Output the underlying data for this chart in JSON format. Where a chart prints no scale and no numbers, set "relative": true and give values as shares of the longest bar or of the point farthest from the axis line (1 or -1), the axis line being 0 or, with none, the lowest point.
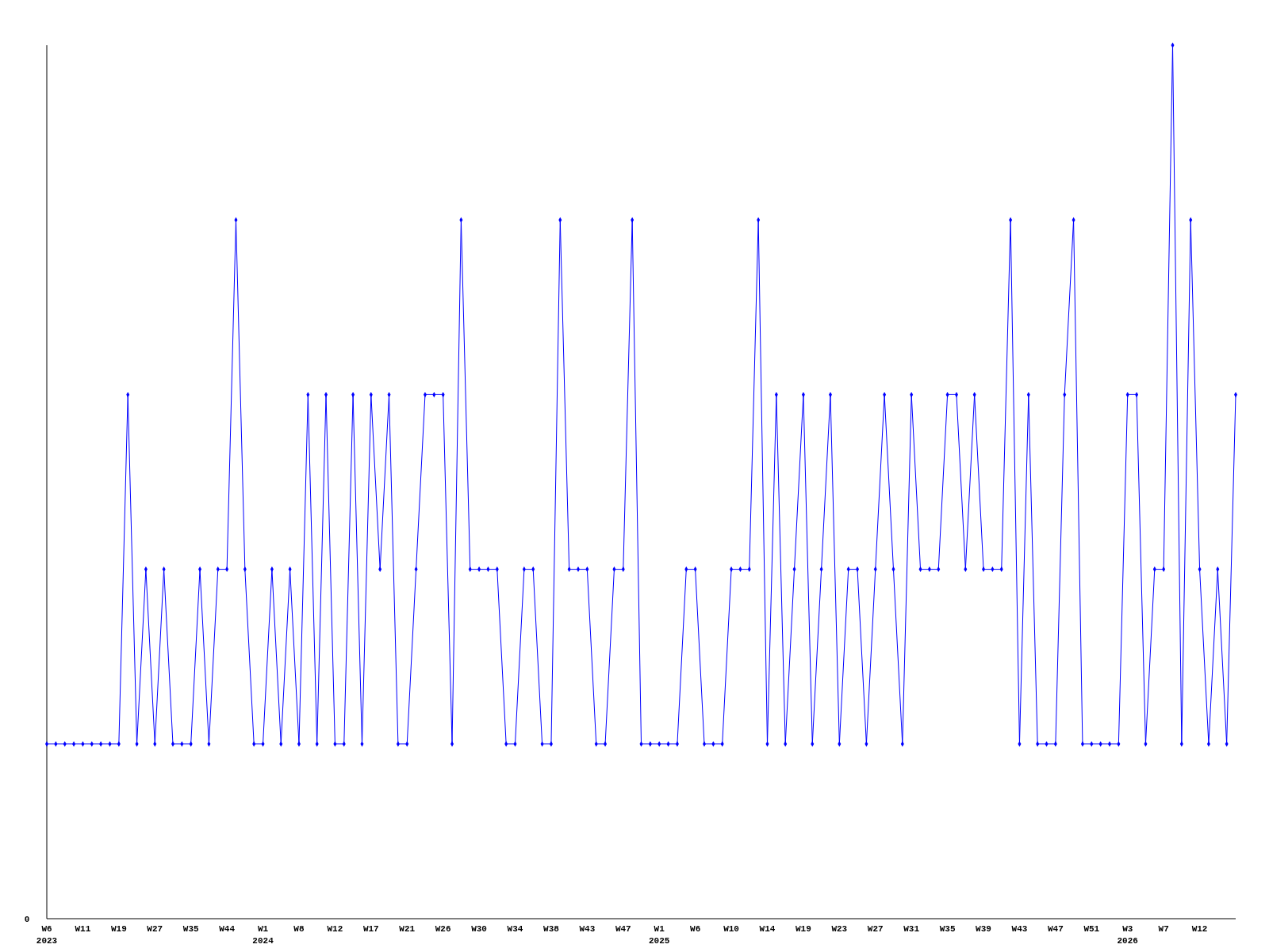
{
  "chart_data": {
    "type": "line",
    "relative": true,
    "marker": "diamond",
    "line_style": "solid",
    "categories": [
      "W6 2023",
      null,
      null,
      null,
      "W11",
      null,
      null,
      null,
      "W19",
      null,
      null,
      null,
      "W27",
      null,
      null,
      null,
      "W35",
      null,
      null,
      null,
      "W44",
      null,
      null,
      null,
      "W1 2024",
      null,
      null,
      null,
      "W8",
      null,
      null,
      null,
      "W12",
      null,
      null,
      null,
      "W17",
      null,
      null,
      null,
      "W21",
      null,
      null,
      null,
      "W26",
      null,
      null,
      null,
      "W30",
      null,
      null,
      null,
      "W34",
      null,
      null,
      null,
      "W38",
      null,
      null,
      null,
      "W43",
      null,
      null,
      null,
      "W47",
      null,
      null,
      null,
      "W1 2025",
      null,
      null,
      null,
      "W6",
      null,
      null,
      null,
      "W10",
      null,
      null,
      null,
      "W14",
      null,
      null,
      null,
      "W19",
      null,
      null,
      null,
      "W23",
      null,
      null,
      null,
      "W27",
      null,
      null,
      null,
      "W31",
      null,
      null,
      null,
      "W35",
      null,
      null,
      null,
      "W39",
      null,
      null,
      null,
      "W43",
      null,
      null,
      null,
      "W47",
      null,
      null,
      null,
      "W51",
      null,
      null,
      null,
      "W3 2026",
      null,
      null,
      null,
      "W7",
      null,
      null,
      null,
      "W12",
      null,
      null,
      null,
      null
    ],
    "series": [
      {
        "color": "#0000ff",
        "values": [
          0.2,
          0.2,
          0.2,
          0.2,
          0.2,
          0.2,
          0.2,
          0.2,
          0.2,
          0.6,
          0.2,
          0.4,
          0.2,
          0.4,
          0.2,
          0.2,
          0.2,
          0.4,
          0.2,
          0.4,
          0.4,
          0.8,
          0.4,
          0.2,
          0.2,
          0.4,
          0.2,
          0.4,
          0.2,
          0.6,
          0.2,
          0.6,
          0.2,
          0.2,
          0.6,
          0.2,
          0.6,
          0.4,
          0.6,
          0.2,
          0.2,
          0.4,
          0.6,
          0.6,
          0.6,
          0.2,
          0.8,
          0.4,
          0.4,
          0.4,
          0.4,
          0.2,
          0.2,
          0.4,
          0.4,
          0.2,
          0.2,
          0.8,
          0.4,
          0.4,
          0.4,
          0.2,
          0.2,
          0.4,
          0.4,
          0.8,
          0.2,
          0.2,
          0.2,
          0.2,
          0.2,
          0.4,
          0.4,
          0.2,
          0.2,
          0.2,
          0.4,
          0.4,
          0.4,
          0.8,
          0.2,
          0.6,
          0.2,
          0.4,
          0.6,
          0.2,
          0.4,
          0.6,
          0.2,
          0.4,
          0.4,
          0.2,
          0.4,
          0.6,
          0.4,
          0.2,
          0.6,
          0.4,
          0.4,
          0.4,
          0.6,
          0.6,
          0.4,
          0.6,
          0.4,
          0.4,
          0.4,
          0.8,
          0.2,
          0.6,
          0.2,
          0.2,
          0.2,
          0.6,
          0.8,
          0.2,
          0.2,
          0.2,
          0.2,
          0.2,
          0.6,
          0.6,
          0.2,
          0.4,
          0.4,
          1,
          0.2,
          0.8,
          0.4,
          0.2,
          0.4,
          0.2,
          0.6
        ]
      }
    ],
    "annotations": [
      "0"
    ]
  }
}
